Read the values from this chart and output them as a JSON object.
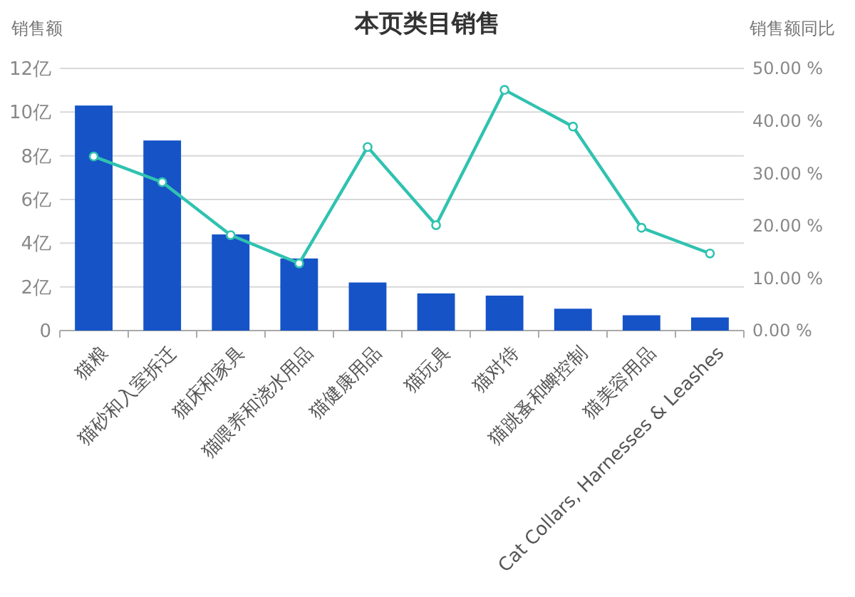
{
  "chart_data": {
    "type": "bar",
    "title": "本页类目销售",
    "ylabel": "销售额",
    "y2label": "销售额同比",
    "categories": [
      "猫粮",
      "猫砂和入室拆迁",
      "猫床和家具",
      "猫喂养和浇水用品",
      "猫健康用品",
      "猫玩具",
      "猫对待",
      "猫跳蚤和蜱控制",
      "猫美容用品",
      "Cat Collars, Harnesses & Leashes"
    ],
    "series": [
      {
        "color": "#1553c7",
        "values": [
          10.3,
          8.7,
          4.4,
          3.3,
          2.2,
          1.7,
          1.6,
          1.0,
          0.7,
          0.6
        ]
      },
      {
        "type": "line",
        "axis": "y2",
        "color": "#30c2b0",
        "marker": "circle",
        "values": [
          33.2,
          28.3,
          18.2,
          12.8,
          35,
          20.1,
          45.9,
          38.9,
          19.6,
          14.7
        ]
      }
    ],
    "ylim": [
      0,
      12
    ],
    "yticks": [
      0,
      {
        "value": 2,
        "label": "2亿"
      },
      {
        "value": 4,
        "label": "4亿"
      },
      {
        "value": 6,
        "label": "6亿"
      },
      {
        "value": 8,
        "label": "8亿"
      },
      {
        "value": 10,
        "label": "10亿"
      },
      {
        "value": 12,
        "label": "12亿"
      }
    ],
    "y2lim": [
      0,
      50
    ],
    "y2ticks": [
      {
        "value": 0,
        "label": "0.00 %"
      },
      {
        "value": 10,
        "label": "10.00 %"
      },
      {
        "value": 20,
        "label": "20.00 %"
      },
      {
        "value": 30,
        "label": "30.00 %"
      },
      {
        "value": 40,
        "label": "40.00 %"
      },
      {
        "value": 50,
        "label": "50.00 %"
      }
    ],
    "grid": "y"
  }
}
